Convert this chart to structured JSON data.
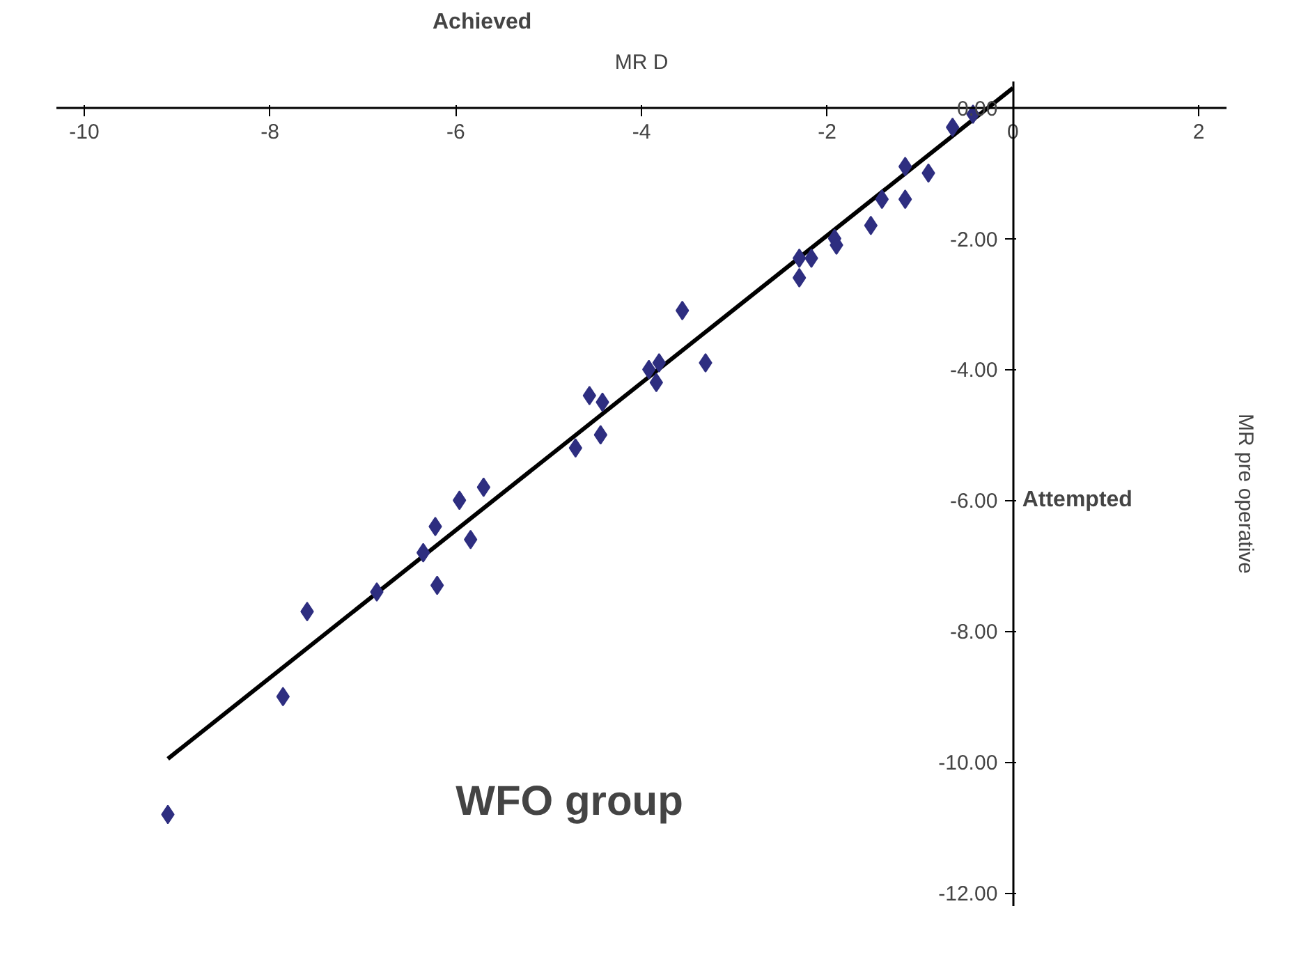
{
  "chart_data": {
    "type": "scatter",
    "xlabel": "MR D",
    "ylabel": "MR pre operative",
    "annotations": [
      "Achieved",
      "Attempted",
      "WFO group"
    ],
    "xlim": [
      -10.3,
      2.3
    ],
    "ylim": [
      -12.2,
      0.4
    ],
    "xticks": [
      -10,
      -8,
      -6,
      -4,
      -2,
      0,
      2
    ],
    "yticks": [
      {
        "value": 0,
        "label": "0.00"
      },
      {
        "value": -2,
        "label": "-2.00"
      },
      {
        "value": -4,
        "label": "-4.00"
      },
      {
        "value": -6,
        "label": "-6.00"
      },
      {
        "value": -8,
        "label": "-8.00"
      },
      {
        "value": -10,
        "label": "-10.00"
      },
      {
        "value": -12,
        "label": "-12.00"
      }
    ],
    "grid": false,
    "series": [
      {
        "color": "#2e2e80",
        "marker": "diamond",
        "x": [
          -9.1,
          -7.86,
          -7.6,
          -6.85,
          -6.35,
          -6.2,
          -6.22,
          -5.96,
          -5.84,
          -5.7,
          -4.71,
          -4.56,
          -4.42,
          -4.44,
          -3.92,
          -3.81,
          -3.84,
          -3.56,
          -3.31,
          -2.3,
          -2.3,
          -2.17,
          -1.92,
          -1.9,
          -1.53,
          -1.41,
          -1.16,
          -1.16,
          -0.91,
          -0.65,
          -0.43
        ],
        "values": [
          -10.8,
          -9.0,
          -7.7,
          -7.4,
          -6.8,
          -7.3,
          -6.4,
          -6.0,
          -6.6,
          -5.8,
          -5.2,
          -4.4,
          -4.5,
          -5.0,
          -4.0,
          -3.9,
          -4.2,
          -3.1,
          -3.9,
          -2.3,
          -2.6,
          -2.3,
          -2.0,
          -2.1,
          -1.8,
          -1.4,
          -1.4,
          -0.9,
          -1.0,
          -0.3,
          -0.1
        ]
      },
      {
        "type": "line",
        "color": "#000000",
        "x": [
          -9.1,
          0
        ],
        "values": [
          -9.95,
          0.3
        ]
      }
    ]
  }
}
